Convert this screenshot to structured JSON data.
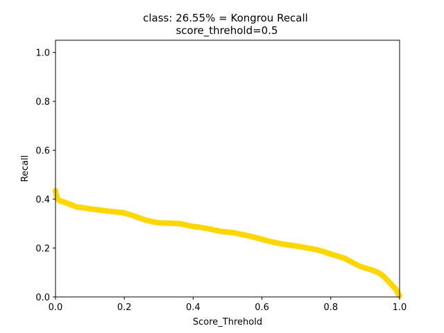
{
  "chart_data": {
    "type": "line",
    "title": "class: 26.55% = Kongrou Recall",
    "subtitle": "score_threhold=0.5",
    "xlabel": "Score_Threhold",
    "ylabel": "Recall",
    "xlim": [
      0,
      1
    ],
    "ylim": [
      0,
      1.05
    ],
    "x_ticks": [
      "0.0",
      "0.2",
      "0.4",
      "0.6",
      "0.8",
      "1.0"
    ],
    "y_ticks": [
      "0.0",
      "0.2",
      "0.4",
      "0.6",
      "0.8",
      "1.0"
    ],
    "grid": false,
    "series": [
      {
        "color": "#FFD700",
        "x": [
          0.0,
          0.002,
          0.005,
          0.01,
          0.02,
          0.03,
          0.04,
          0.05,
          0.06,
          0.08,
          0.1,
          0.12,
          0.14,
          0.16,
          0.18,
          0.2,
          0.22,
          0.24,
          0.26,
          0.28,
          0.3,
          0.33,
          0.36,
          0.38,
          0.4,
          0.42,
          0.44,
          0.46,
          0.48,
          0.5,
          0.52,
          0.54,
          0.56,
          0.58,
          0.6,
          0.62,
          0.64,
          0.66,
          0.68,
          0.7,
          0.72,
          0.74,
          0.76,
          0.78,
          0.8,
          0.82,
          0.84,
          0.86,
          0.88,
          0.9,
          0.92,
          0.94,
          0.95,
          0.96,
          0.97,
          0.98,
          0.99,
          0.995,
          1.0
        ],
        "y": [
          0.435,
          0.42,
          0.405,
          0.395,
          0.39,
          0.385,
          0.38,
          0.375,
          0.368,
          0.365,
          0.36,
          0.357,
          0.353,
          0.35,
          0.347,
          0.343,
          0.335,
          0.325,
          0.315,
          0.308,
          0.303,
          0.302,
          0.3,
          0.294,
          0.288,
          0.285,
          0.28,
          0.274,
          0.268,
          0.265,
          0.262,
          0.256,
          0.25,
          0.243,
          0.236,
          0.228,
          0.222,
          0.216,
          0.212,
          0.208,
          0.203,
          0.198,
          0.193,
          0.185,
          0.175,
          0.167,
          0.158,
          0.143,
          0.128,
          0.118,
          0.11,
          0.098,
          0.088,
          0.075,
          0.06,
          0.045,
          0.03,
          0.015,
          0.005
        ]
      }
    ]
  }
}
